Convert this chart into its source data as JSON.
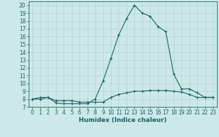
{
  "xlabel": "Humidex (Indice chaleur)",
  "background_color": "#cce8e8",
  "line_color": "#1a6060",
  "x_values": [
    0,
    1,
    2,
    3,
    4,
    5,
    6,
    7,
    8,
    9,
    10,
    11,
    12,
    13,
    14,
    15,
    16,
    17,
    18,
    19,
    20,
    21,
    22,
    23
  ],
  "curve1_y": [
    8.0,
    8.2,
    8.2,
    7.5,
    7.4,
    7.4,
    7.4,
    7.4,
    8.0,
    10.3,
    13.2,
    16.2,
    18.3,
    20.0,
    19.0,
    18.6,
    17.3,
    16.6,
    11.2,
    9.3,
    9.3,
    8.8,
    8.2,
    8.2
  ],
  "curve2_y": [
    8.0,
    8.0,
    8.2,
    7.8,
    7.8,
    7.8,
    7.6,
    7.6,
    7.6,
    7.6,
    8.2,
    8.6,
    8.8,
    9.0,
    9.0,
    9.1,
    9.1,
    9.1,
    9.0,
    8.9,
    8.6,
    8.2,
    8.2,
    8.2
  ],
  "xlim": [
    -0.5,
    23.5
  ],
  "ylim": [
    7.0,
    20.5
  ],
  "yticks": [
    7,
    8,
    9,
    10,
    11,
    12,
    13,
    14,
    15,
    16,
    17,
    18,
    19,
    20
  ],
  "xticks": [
    0,
    1,
    2,
    3,
    4,
    5,
    6,
    7,
    8,
    9,
    10,
    11,
    12,
    13,
    14,
    15,
    16,
    17,
    18,
    19,
    20,
    21,
    22,
    23
  ],
  "grid_color": "#b0d4d4",
  "tick_fontsize": 5.5,
  "xlabel_fontsize": 6.5
}
